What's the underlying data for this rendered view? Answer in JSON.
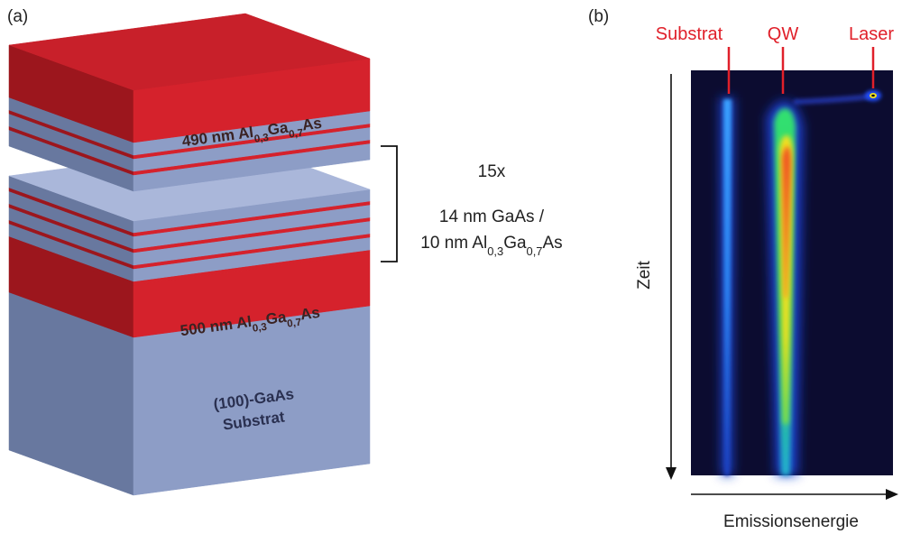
{
  "panel_a": {
    "label": "(a)",
    "top_layer": {
      "text": [
        "490 nm Al",
        "0,3",
        "Ga",
        "0,7",
        "As"
      ]
    },
    "bottom_layer": {
      "text": [
        "500 nm Al",
        "0,3",
        "Ga",
        "0,7",
        "As"
      ]
    },
    "substrate": {
      "lines": [
        "(100)-GaAs",
        "Substrat"
      ]
    },
    "annotation": {
      "repeat": "15x",
      "line1": "14 nm GaAs /",
      "line2": [
        "10 nm Al",
        "0,3",
        "Ga",
        "0,7",
        "As"
      ]
    }
  },
  "panel_b": {
    "label": "(b)",
    "markers": [
      "Substrat",
      "QW",
      "Laser"
    ],
    "y_axis": "Zeit",
    "x_axis": "Emissionsenergie"
  }
}
